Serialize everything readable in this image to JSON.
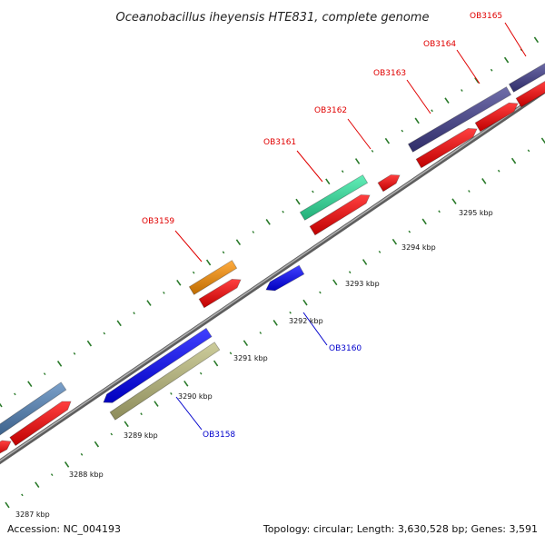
{
  "title": "Oceanobacillus iheyensis HTE831, complete genome",
  "footer": {
    "accession": "Accession: NC_004193",
    "summary": "Topology: circular; Length: 3,630,528 bp; Genes: 3,591"
  },
  "colors": {
    "backbone": "#8a8a8a",
    "tick": "#2a7a2a",
    "forward_label": "#e00000",
    "reverse_label": "#0000cc",
    "cds_forward": "#ff0000",
    "cds_reverse": "#0000ff"
  },
  "kbp_ticks": [
    "3287 kbp",
    "3288 kbp",
    "3289 kbp",
    "3290 kbp",
    "3291 kbp",
    "3292 kbp",
    "3293 kbp",
    "3294 kbp",
    "3295 kbp"
  ],
  "genes": [
    {
      "id": "OB3158",
      "strand": "reverse"
    },
    {
      "id": "OB3159",
      "strand": "forward"
    },
    {
      "id": "OB3160",
      "strand": "reverse"
    },
    {
      "id": "OB3161",
      "strand": "forward"
    },
    {
      "id": "OB3162",
      "strand": "forward"
    },
    {
      "id": "OB3163",
      "strand": "forward"
    },
    {
      "id": "OB3164",
      "strand": "forward"
    },
    {
      "id": "OB3165",
      "strand": "forward"
    }
  ]
}
